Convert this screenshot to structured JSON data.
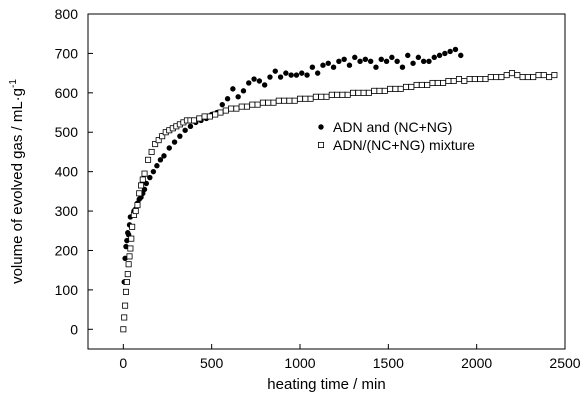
{
  "chart_data": {
    "type": "scatter",
    "title": "",
    "xlabel": "heating time / min",
    "ylabel": "volume of evolved gas /  mL·g",
    "ylabel_sup": "-1",
    "xlim": [
      -200,
      2500
    ],
    "ylim": [
      -50,
      800
    ],
    "xticks": [
      0,
      500,
      1000,
      1500,
      2000,
      2500
    ],
    "yticks": [
      0,
      100,
      200,
      300,
      400,
      500,
      600,
      700,
      800
    ],
    "grid": false,
    "legend": {
      "position": "center-right"
    },
    "series": [
      {
        "name": "ADN and (NC+NG)",
        "marker": "filled-circle",
        "color": "#000000",
        "x": [
          5,
          10,
          15,
          20,
          25,
          30,
          35,
          40,
          50,
          60,
          70,
          80,
          90,
          100,
          110,
          120,
          130,
          150,
          170,
          190,
          210,
          230,
          260,
          290,
          320,
          350,
          380,
          410,
          440,
          470,
          500,
          530,
          560,
          590,
          620,
          650,
          680,
          710,
          740,
          770,
          800,
          830,
          860,
          890,
          920,
          950,
          980,
          1010,
          1040,
          1070,
          1100,
          1130,
          1160,
          1190,
          1220,
          1250,
          1280,
          1310,
          1340,
          1370,
          1400,
          1430,
          1460,
          1490,
          1520,
          1550,
          1580,
          1610,
          1640,
          1670,
          1700,
          1730,
          1760,
          1790,
          1820,
          1850,
          1880,
          1910
        ],
        "y": [
          120,
          180,
          210,
          225,
          245,
          240,
          265,
          285,
          260,
          300,
          305,
          320,
          330,
          335,
          345,
          355,
          370,
          385,
          400,
          415,
          430,
          440,
          460,
          475,
          490,
          505,
          515,
          525,
          530,
          535,
          545,
          550,
          570,
          585,
          610,
          590,
          605,
          625,
          635,
          630,
          620,
          640,
          655,
          640,
          650,
          645,
          645,
          650,
          645,
          665,
          650,
          670,
          675,
          665,
          680,
          685,
          670,
          690,
          680,
          685,
          680,
          665,
          685,
          680,
          690,
          680,
          665,
          695,
          675,
          690,
          680,
          680,
          690,
          695,
          700,
          705,
          710,
          695
        ]
      },
      {
        "name": "ADN/(NC+NG) mixture",
        "marker": "open-square",
        "color": "#000000",
        "x": [
          0,
          5,
          10,
          15,
          20,
          25,
          30,
          35,
          40,
          45,
          50,
          60,
          70,
          80,
          90,
          100,
          110,
          120,
          140,
          160,
          180,
          200,
          220,
          240,
          260,
          280,
          300,
          320,
          340,
          360,
          380,
          400,
          430,
          460,
          490,
          520,
          550,
          580,
          610,
          640,
          670,
          700,
          730,
          760,
          790,
          820,
          850,
          880,
          910,
          940,
          970,
          1000,
          1030,
          1060,
          1090,
          1120,
          1150,
          1180,
          1210,
          1240,
          1270,
          1300,
          1330,
          1360,
          1390,
          1420,
          1450,
          1480,
          1510,
          1540,
          1570,
          1600,
          1630,
          1660,
          1690,
          1720,
          1750,
          1780,
          1810,
          1840,
          1870,
          1900,
          1930,
          1960,
          1990,
          2020,
          2050,
          2080,
          2110,
          2140,
          2170,
          2200,
          2230,
          2260,
          2290,
          2320,
          2350,
          2380,
          2410,
          2440
        ],
        "y": [
          0,
          30,
          60,
          95,
          120,
          140,
          165,
          185,
          205,
          230,
          260,
          290,
          300,
          315,
          345,
          365,
          380,
          395,
          430,
          450,
          470,
          480,
          490,
          500,
          505,
          510,
          515,
          520,
          525,
          530,
          530,
          530,
          535,
          540,
          540,
          545,
          550,
          555,
          560,
          560,
          565,
          565,
          570,
          570,
          575,
          575,
          575,
          580,
          580,
          580,
          580,
          585,
          585,
          585,
          590,
          590,
          590,
          595,
          595,
          595,
          595,
          600,
          600,
          600,
          600,
          605,
          605,
          605,
          610,
          610,
          610,
          615,
          615,
          620,
          620,
          620,
          625,
          625,
          625,
          630,
          630,
          635,
          630,
          635,
          635,
          635,
          635,
          640,
          640,
          640,
          645,
          650,
          645,
          640,
          640,
          640,
          645,
          645,
          640,
          645
        ]
      }
    ]
  }
}
